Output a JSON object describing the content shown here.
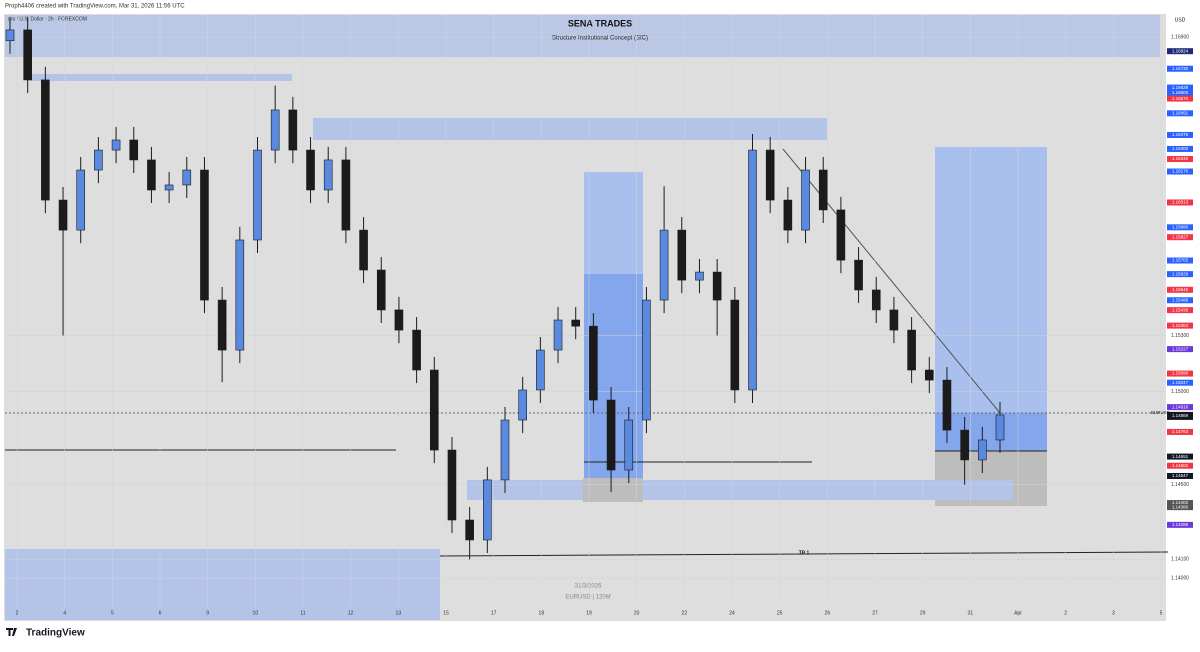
{
  "header": {
    "credit": "Proph4406 created with TradingView.com, Mar 31, 2026 11:56 UTC",
    "brand": "TradingView"
  },
  "chart_data": {
    "type": "candlestick",
    "symbol": "uro / U.S. Dollar · 2h · FOREXCOM",
    "title": "SENA TRADES",
    "subtitle": "Structure Institutional Concept (SIC)",
    "watermark_date": "31/3/2026",
    "watermark_symbol": "EURUSD | 120M",
    "annotation": "TP 1",
    "currency": "USD",
    "current_symbol": "EURUSD",
    "up_color": "#5a8ae0",
    "down_color": "#1b1b1b",
    "grid": true,
    "x_labels": [
      "2",
      "4",
      "5",
      "6",
      "9",
      "10",
      "11",
      "12",
      "13",
      "15",
      "17",
      "18",
      "19",
      "20",
      "22",
      "24",
      "25",
      "26",
      "27",
      "29",
      "31",
      "Apr",
      "2",
      "3",
      "5"
    ],
    "ylim": [
      1.13775,
      1.17018
    ],
    "yticks": [
      {
        "value": 1.169,
        "label": "1.16900"
      },
      {
        "value": 1.153,
        "label": "1.15300"
      },
      {
        "value": 1.15,
        "label": "1.15000"
      },
      {
        "value": 1.145,
        "label": "1.14500"
      },
      {
        "value": 1.141,
        "label": "1.14100"
      },
      {
        "value": 1.14,
        "label": "1.14000"
      }
    ],
    "current_price": 1.14869,
    "price_tags": [
      {
        "value": 1.16824,
        "color": "#1e2a78"
      },
      {
        "value": 1.1673,
        "label": "1.16730",
        "color": "#2962ff"
      },
      {
        "value": 1.16629,
        "color": "#2962ff"
      },
      {
        "value": 1.166,
        "label": "1.16600",
        "color": "#2962ff"
      },
      {
        "value": 1.1657,
        "label": "1.16570",
        "color": "#f23645"
      },
      {
        "value": 1.16491,
        "color": "#2962ff"
      },
      {
        "value": 1.16375,
        "color": "#2962ff"
      },
      {
        "value": 1.163,
        "label": "1.16300",
        "color": "#2962ff"
      },
      {
        "value": 1.16246,
        "color": "#f23645"
      },
      {
        "value": 1.16179,
        "color": "#2962ff"
      },
      {
        "value": 1.16013,
        "color": "#f23645"
      },
      {
        "value": 1.1588,
        "label": "1.15880",
        "color": "#2962ff"
      },
      {
        "value": 1.15827,
        "color": "#f23645"
      },
      {
        "value": 1.15702,
        "color": "#2962ff"
      },
      {
        "value": 1.15629,
        "color": "#2962ff"
      },
      {
        "value": 1.15545,
        "color": "#f23645"
      },
      {
        "value": 1.15489,
        "color": "#2962ff"
      },
      {
        "value": 1.15436,
        "color": "#f23645"
      },
      {
        "value": 1.15353,
        "color": "#f23645"
      },
      {
        "value": 1.15227,
        "color": "#6a3bd8"
      },
      {
        "value": 1.15096,
        "color": "#f23645"
      },
      {
        "value": 1.15047,
        "color": "#2962ff"
      },
      {
        "value": 1.14916,
        "color": "#6a3bd8"
      },
      {
        "value": 1.14783,
        "color": "#f23645"
      },
      {
        "value": 1.14651,
        "color": "#131722"
      },
      {
        "value": 1.14602,
        "color": "#f23645"
      },
      {
        "value": 1.14547,
        "color": "#131722"
      },
      {
        "value": 1.14402,
        "color": "#555555"
      },
      {
        "value": 1.1438,
        "label": "1.14380",
        "color": "#555555"
      },
      {
        "value": 1.14285,
        "color": "#6a3bd8"
      }
    ],
    "open": [
      1.1688,
      1.16938,
      1.1667,
      1.16026,
      1.15865,
      1.16187,
      1.16294,
      1.16348,
      1.16241,
      1.1608,
      1.16107,
      1.16187,
      1.1549,
      1.15222,
      1.15812,
      1.16294,
      1.16509,
      1.16294,
      1.1608,
      1.16241,
      1.15865,
      1.15651,
      1.15437,
      1.15329,
      1.15115,
      1.14686,
      1.14311,
      1.14204,
      1.14526,
      1.14847,
      1.15008,
      1.15222,
      1.15383,
      1.1535,
      1.14954,
      1.14579,
      1.14847,
      1.1549,
      1.15865,
      1.15597,
      1.1564,
      1.1549,
      1.15008,
      1.16294,
      1.16026,
      1.15865,
      1.16187,
      1.15973,
      1.15704,
      1.15544,
      1.15437,
      1.15329,
      1.15115,
      1.15061,
      1.14793,
      1.14633,
      1.1474
    ],
    "high": [
      1.17008,
      1.17008,
      1.1674,
      1.16096,
      1.16257,
      1.16364,
      1.16418,
      1.16418,
      1.16311,
      1.16177,
      1.16257,
      1.16257,
      1.1556,
      1.15882,
      1.16364,
      1.1664,
      1.16579,
      1.16364,
      1.16311,
      1.16311,
      1.15935,
      1.15721,
      1.15507,
      1.15399,
      1.15185,
      1.14756,
      1.14381,
      1.14596,
      1.14917,
      1.15078,
      1.15292,
      1.15453,
      1.15453,
      1.1542,
      1.15024,
      1.14917,
      1.1556,
      1.161,
      1.15935,
      1.1571,
      1.1571,
      1.1556,
      1.1638,
      1.16364,
      1.16096,
      1.16257,
      1.16257,
      1.16043,
      1.15774,
      1.15614,
      1.15507,
      1.15399,
      1.15185,
      1.15131,
      1.14863,
      1.1481,
      1.14944
    ],
    "low": [
      1.1681,
      1.166,
      1.15956,
      1.153,
      1.15795,
      1.16117,
      1.16224,
      1.16171,
      1.1601,
      1.1601,
      1.16037,
      1.1542,
      1.1505,
      1.15152,
      1.15742,
      1.16224,
      1.16224,
      1.1601,
      1.1601,
      1.15795,
      1.15581,
      1.15367,
      1.15259,
      1.15045,
      1.14616,
      1.14241,
      1.141,
      1.14134,
      1.14456,
      1.14777,
      1.14938,
      1.15152,
      1.1528,
      1.14884,
      1.1446,
      1.14509,
      1.14777,
      1.1542,
      1.15527,
      1.15527,
      1.153,
      1.14938,
      1.14938,
      1.15956,
      1.15795,
      1.15795,
      1.15903,
      1.15634,
      1.15474,
      1.15367,
      1.15259,
      1.15045,
      1.14991,
      1.14723,
      1.145,
      1.14563,
      1.1467
    ],
    "close": [
      1.16938,
      1.1667,
      1.16026,
      1.15865,
      1.16187,
      1.16294,
      1.16348,
      1.16241,
      1.1608,
      1.16107,
      1.16187,
      1.1549,
      1.15222,
      1.15812,
      1.16294,
      1.16509,
      1.16294,
      1.1608,
      1.16241,
      1.15865,
      1.15651,
      1.15437,
      1.15329,
      1.15115,
      1.14686,
      1.14311,
      1.14204,
      1.14526,
      1.14847,
      1.15008,
      1.15222,
      1.15383,
      1.1535,
      1.14954,
      1.14579,
      1.14847,
      1.1549,
      1.15865,
      1.15597,
      1.1564,
      1.1549,
      1.15008,
      1.16294,
      1.16026,
      1.15865,
      1.16187,
      1.15973,
      1.15704,
      1.15544,
      1.15437,
      1.15329,
      1.15115,
      1.15061,
      1.14793,
      1.14633,
      1.1474,
      1.14874
    ]
  }
}
